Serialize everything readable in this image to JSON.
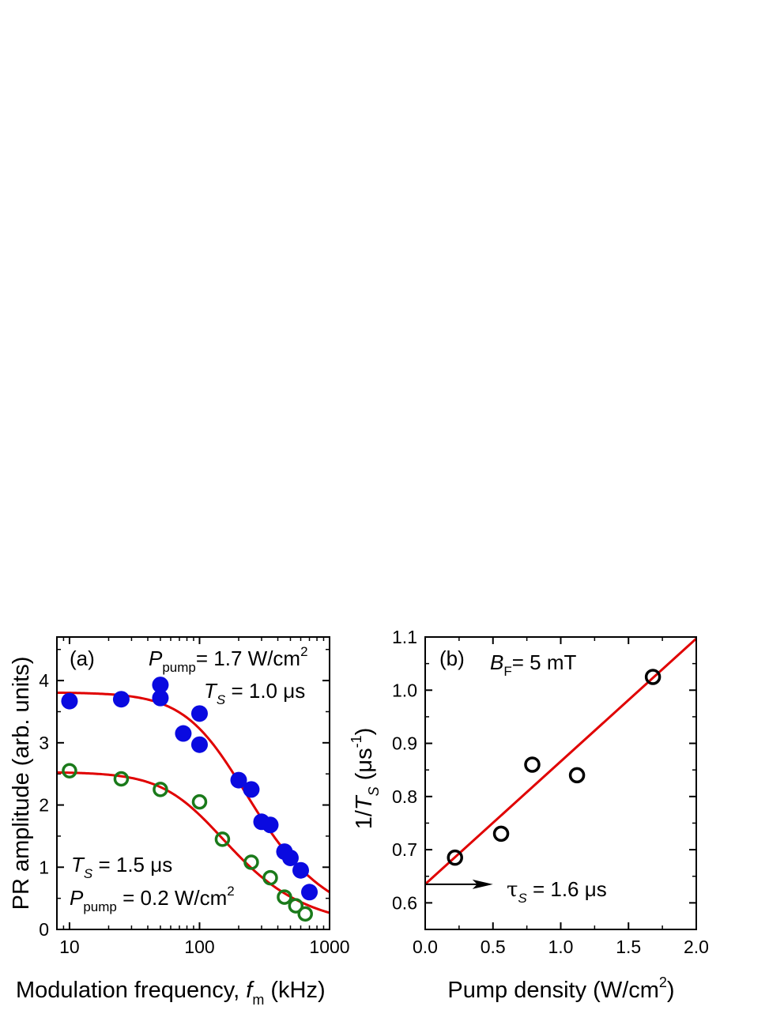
{
  "chart_data": [
    {
      "type": "scatter",
      "panel_label": "(a)",
      "xlabel": "Modulation frequency, f_m (kHz)",
      "xlabel_main": "Modulation frequency, ",
      "xlabel_var": "f",
      "xlabel_sub": "m",
      "xlabel_unit": " (kHz)",
      "ylabel": "PR amplitude (arb. units)",
      "xscale": "log",
      "xlim": [
        8,
        1000
      ],
      "ylim": [
        0,
        4.7
      ],
      "x_ticks": [
        10,
        100,
        1000
      ],
      "x_tick_labels": [
        "10",
        "100",
        "1000"
      ],
      "y_ticks": [
        0,
        1,
        2,
        3,
        4
      ],
      "y_tick_labels": [
        "0",
        "1",
        "2",
        "3",
        "4"
      ],
      "series": [
        {
          "marker": "filled-circle",
          "color": "#0a0ae0",
          "x": [
            10,
            25,
            50,
            50,
            75,
            100,
            100,
            200,
            250,
            300,
            350,
            450,
            500,
            600,
            700
          ],
          "y": [
            3.67,
            3.7,
            3.93,
            3.72,
            3.15,
            3.47,
            2.97,
            2.4,
            2.25,
            1.73,
            1.68,
            1.25,
            1.15,
            0.95,
            0.6
          ]
        },
        {
          "marker": "open-circle",
          "color": "#1a7a1a",
          "x": [
            10,
            25,
            50,
            100,
            150,
            250,
            350,
            450,
            550,
            650
          ],
          "y": [
            2.55,
            2.42,
            2.25,
            2.05,
            1.45,
            1.08,
            0.83,
            0.52,
            0.38,
            0.25
          ]
        }
      ],
      "fits": [
        {
          "color": "#e00000",
          "A": 3.81,
          "T_us": 1.0
        },
        {
          "color": "#e00000",
          "A": 2.53,
          "T_us": 1.5
        }
      ],
      "annotations": {
        "top_power": {
          "var": "P",
          "sub": "pump",
          "text": "= 1.7 W/cm",
          "sup": "2"
        },
        "top_T": {
          "var": "T",
          "sub": "S",
          "text": " = 1.0 μs"
        },
        "bottom_T": {
          "var": "T",
          "sub": "S",
          "text": " = 1.5 μs"
        },
        "bottom_power": {
          "var": "P",
          "sub": "pump",
          "text": " = 0.2 W/cm",
          "sup": "2"
        }
      }
    },
    {
      "type": "scatter",
      "panel_label": "(b)",
      "xlabel": "Pump density (W/cm^2)",
      "xlabel_main": "Pump density (W/cm",
      "xlabel_sup": "2",
      "xlabel_end": ")",
      "ylabel": "1/T_S (μs^-1)",
      "ylabel_pre": "1/",
      "ylabel_var": "T",
      "ylabel_sub": "S",
      "ylabel_mid": " (μs",
      "ylabel_sup": "-1",
      "ylabel_end": ")",
      "xlim": [
        0.0,
        2.0
      ],
      "ylim": [
        0.55,
        1.1
      ],
      "x_ticks": [
        0.0,
        0.5,
        1.0,
        1.5,
        2.0
      ],
      "x_tick_labels": [
        "0.0",
        "0.5",
        "1.0",
        "1.5",
        "2.0"
      ],
      "y_ticks": [
        0.6,
        0.7,
        0.8,
        0.9,
        1.0,
        1.1
      ],
      "y_tick_labels": [
        "0.6",
        "0.7",
        "0.8",
        "0.9",
        "1.0",
        "1.1"
      ],
      "series": [
        {
          "marker": "open-circle",
          "color": "#000000",
          "x": [
            0.22,
            0.56,
            0.79,
            1.12,
            1.68
          ],
          "y": [
            0.685,
            0.73,
            0.86,
            0.84,
            1.025
          ]
        }
      ],
      "fit": {
        "color": "#e00000",
        "x": [
          0.0,
          2.0
        ],
        "y": [
          0.635,
          1.097
        ]
      },
      "annotations": {
        "field": {
          "var": "B",
          "sub": "F",
          "text": "= 5 mT"
        },
        "tau": {
          "var": "τ",
          "sub": "S",
          "text": " = 1.6 μs"
        }
      },
      "arrow": {
        "x": [
          0.0,
          0.5
        ],
        "y": 0.635
      }
    }
  ]
}
